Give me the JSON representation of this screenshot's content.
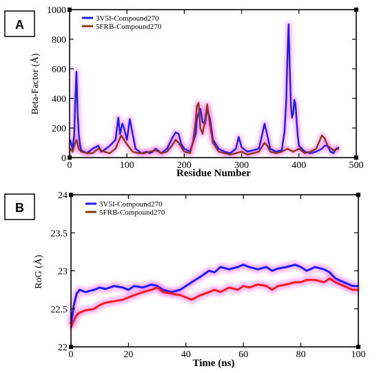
{
  "chart_data": [
    {
      "panel_label": "A",
      "type": "line",
      "xlabel": "Residue Number",
      "ylabel": "Beta-Factor (Å)",
      "xlim": [
        0,
        500
      ],
      "ylim": [
        0,
        1000
      ],
      "x_ticks": [
        "0",
        "100",
        "200",
        "300",
        "400",
        "500"
      ],
      "y_ticks": [
        "0",
        "200",
        "400",
        "600",
        "800",
        "1000"
      ],
      "grid": false,
      "legend_position": "top-left",
      "series": [
        {
          "name": "3V5I-Compound270",
          "color": "#1a1aff",
          "x": [
            1,
            5,
            8,
            10,
            12,
            14,
            16,
            18,
            20,
            25,
            30,
            40,
            50,
            55,
            60,
            70,
            80,
            85,
            88,
            92,
            95,
            100,
            105,
            110,
            115,
            125,
            135,
            140,
            145,
            150,
            160,
            170,
            180,
            185,
            190,
            195,
            200,
            210,
            215,
            220,
            222,
            225,
            228,
            232,
            236,
            240,
            245,
            250,
            260,
            270,
            280,
            290,
            295,
            300,
            310,
            320,
            330,
            335,
            340,
            345,
            350,
            360,
            370,
            375,
            378,
            380,
            382,
            384,
            386,
            388,
            390,
            392,
            394,
            396,
            398,
            400,
            405,
            410,
            420,
            430,
            440,
            445,
            450,
            455,
            460,
            465,
            470
          ],
          "y": [
            120,
            60,
            150,
            400,
            580,
            300,
            160,
            90,
            50,
            40,
            30,
            60,
            80,
            40,
            50,
            80,
            120,
            270,
            160,
            230,
            200,
            120,
            260,
            160,
            60,
            30,
            40,
            30,
            40,
            60,
            30,
            60,
            140,
            170,
            160,
            90,
            60,
            40,
            100,
            160,
            260,
            300,
            330,
            240,
            230,
            330,
            260,
            120,
            60,
            40,
            30,
            60,
            140,
            70,
            40,
            50,
            60,
            140,
            230,
            150,
            60,
            40,
            50,
            180,
            400,
            700,
            900,
            600,
            350,
            270,
            300,
            390,
            360,
            250,
            150,
            80,
            60,
            40,
            30,
            40,
            60,
            80,
            80,
            40,
            30,
            60,
            70
          ]
        },
        {
          "name": "5FRB-Compound270",
          "color": "#8b3a0f",
          "x": [
            1,
            5,
            8,
            12,
            16,
            20,
            30,
            40,
            50,
            60,
            70,
            80,
            90,
            100,
            110,
            120,
            130,
            140,
            150,
            160,
            170,
            180,
            185,
            190,
            195,
            200,
            210,
            215,
            220,
            222,
            225,
            228,
            232,
            236,
            240,
            245,
            250,
            260,
            270,
            280,
            290,
            300,
            310,
            320,
            330,
            340,
            345,
            350,
            360,
            370,
            380,
            390,
            400,
            410,
            420,
            430,
            440,
            445,
            450,
            460,
            470
          ],
          "y": [
            60,
            40,
            80,
            120,
            60,
            40,
            30,
            30,
            60,
            40,
            30,
            60,
            150,
            90,
            40,
            30,
            30,
            40,
            50,
            30,
            40,
            90,
            120,
            100,
            70,
            40,
            30,
            100,
            250,
            350,
            370,
            200,
            160,
            250,
            360,
            220,
            100,
            40,
            30,
            20,
            30,
            40,
            20,
            30,
            40,
            100,
            80,
            40,
            30,
            40,
            60,
            40,
            60,
            30,
            40,
            60,
            150,
            130,
            80,
            50,
            60
          ]
        }
      ]
    },
    {
      "panel_label": "B",
      "type": "line",
      "xlabel": "Time (ns)",
      "ylabel": "RoG (Å)",
      "xlim": [
        0,
        100
      ],
      "ylim": [
        22,
        24
      ],
      "x_ticks": [
        "0",
        "20",
        "40",
        "60",
        "80",
        "100"
      ],
      "y_ticks": [
        "22",
        "22.5",
        "23",
        "23.5",
        "24"
      ],
      "grid": false,
      "legend_position": "top-left",
      "series": [
        {
          "name": "3V5I-Compound270",
          "color": "#1a1aff",
          "x": [
            0,
            1,
            2,
            3,
            5,
            8,
            10,
            12,
            15,
            18,
            20,
            22,
            25,
            28,
            30,
            32,
            35,
            38,
            40,
            42,
            45,
            48,
            50,
            52,
            55,
            58,
            60,
            62,
            65,
            68,
            70,
            72,
            75,
            78,
            80,
            82,
            85,
            88,
            90,
            92,
            95,
            98,
            100
          ],
          "y": [
            22.3,
            22.55,
            22.7,
            22.75,
            22.72,
            22.75,
            22.78,
            22.76,
            22.8,
            22.78,
            22.75,
            22.8,
            22.78,
            22.82,
            22.8,
            22.75,
            22.72,
            22.75,
            22.8,
            22.85,
            22.92,
            23.0,
            22.98,
            23.05,
            23.02,
            23.05,
            23.08,
            23.05,
            23.02,
            23.05,
            23.0,
            23.03,
            23.05,
            23.08,
            23.05,
            23.0,
            23.05,
            23.02,
            22.98,
            22.9,
            22.85,
            22.8,
            22.8
          ]
        },
        {
          "name": "5FRB-Compound270",
          "color": "#8b3a0f",
          "x": [
            0,
            1,
            2,
            3,
            5,
            8,
            10,
            12,
            15,
            18,
            20,
            22,
            25,
            28,
            30,
            32,
            35,
            38,
            40,
            42,
            45,
            48,
            50,
            52,
            55,
            58,
            60,
            62,
            65,
            68,
            70,
            72,
            75,
            78,
            80,
            82,
            85,
            88,
            90,
            92,
            95,
            98,
            100
          ],
          "y": [
            22.25,
            22.35,
            22.42,
            22.45,
            22.48,
            22.5,
            22.55,
            22.58,
            22.6,
            22.62,
            22.65,
            22.68,
            22.72,
            22.75,
            22.78,
            22.72,
            22.7,
            22.68,
            22.65,
            22.62,
            22.68,
            22.72,
            22.75,
            22.72,
            22.78,
            22.75,
            22.8,
            22.78,
            22.82,
            22.8,
            22.75,
            22.8,
            22.82,
            22.85,
            22.85,
            22.88,
            22.88,
            22.85,
            22.9,
            22.85,
            22.8,
            22.75,
            22.75
          ]
        }
      ]
    }
  ]
}
